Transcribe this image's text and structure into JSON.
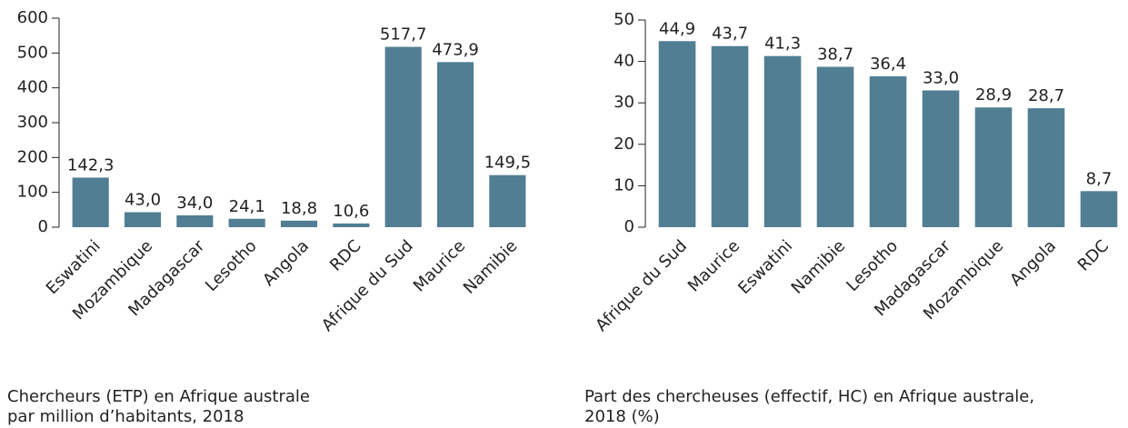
{
  "chart_data": [
    {
      "type": "bar",
      "caption": [
        "Chercheurs (ETP) en Afrique australe",
        "par million d’habitants, 2018"
      ],
      "categories": [
        "Eswatini",
        "Mozambique",
        "Madagascar",
        "Lesotho",
        "Angola",
        "RDC",
        "Afrique du Sud",
        "Maurice",
        "Namibie"
      ],
      "values": [
        142.3,
        43.0,
        34.0,
        24.1,
        18.8,
        10.6,
        517.7,
        473.9,
        149.5
      ],
      "value_labels": [
        "142,3",
        "43,0",
        "34,0",
        "24,1",
        "18,8",
        "10,6",
        "517,7",
        "473,9",
        "149,5"
      ],
      "color": "#517e93",
      "ylim": [
        0,
        600
      ],
      "yticks": [
        0,
        100,
        200,
        300,
        400,
        500,
        600
      ]
    },
    {
      "type": "bar",
      "caption": [
        "Part des chercheuses (effectif, HC) en Afrique australe,",
        "2018 (%)"
      ],
      "categories": [
        "Afrique du Sud",
        "Maurice",
        "Eswatini",
        "Namibie",
        "Lesotho",
        "Madagascar",
        "Mozambique",
        "Angola",
        "RDC"
      ],
      "values": [
        44.9,
        43.7,
        41.3,
        38.7,
        36.4,
        33.0,
        28.9,
        28.7,
        8.7
      ],
      "value_labels": [
        "44,9",
        "43,7",
        "41,3",
        "38,7",
        "36,4",
        "33,0",
        "28,9",
        "28,7",
        "8,7"
      ],
      "color": "#517e93",
      "ylim": [
        0,
        50
      ],
      "yticks": [
        0,
        10,
        20,
        30,
        40,
        50
      ]
    }
  ]
}
